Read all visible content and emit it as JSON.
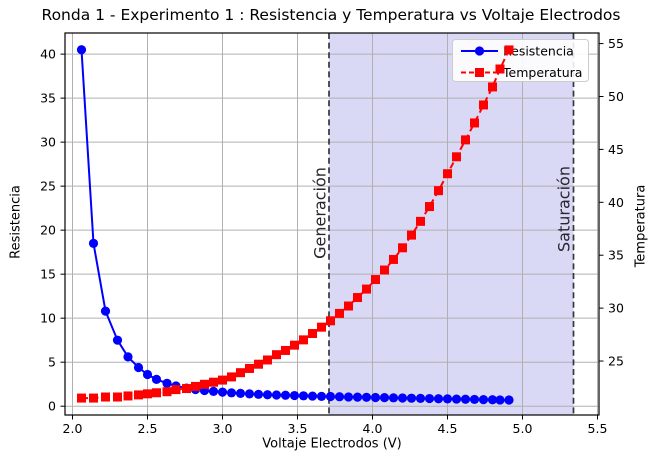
{
  "chart_data": {
    "type": "line",
    "title": "Ronda 1 - Experimento 1 : Resistencia y Temperatura vs Voltaje Electrodos",
    "xlabel": "Voltaje Electrodos (V)",
    "ylabel_left": "Resistencia",
    "ylabel_right": "Temperatura",
    "xlim": [
      1.95,
      5.51
    ],
    "ylim_left": [
      -1.0,
      42.4
    ],
    "ylim_right": [
      19.9,
      56.0
    ],
    "xticks": [
      2.0,
      2.5,
      3.0,
      3.5,
      4.0,
      4.5,
      5.0,
      5.5
    ],
    "yticks_left": [
      0,
      5,
      10,
      15,
      20,
      25,
      30,
      35,
      40
    ],
    "yticks_right": [
      25,
      30,
      35,
      40,
      45,
      50,
      55
    ],
    "grid": true,
    "grid_color": "#b0b0b0",
    "x": [
      2.06,
      2.14,
      2.22,
      2.3,
      2.37,
      2.44,
      2.5,
      2.56,
      2.63,
      2.69,
      2.76,
      2.82,
      2.88,
      2.94,
      3.0,
      3.06,
      3.12,
      3.18,
      3.24,
      3.3,
      3.36,
      3.42,
      3.48,
      3.54,
      3.6,
      3.66,
      3.72,
      3.78,
      3.84,
      3.9,
      3.96,
      4.02,
      4.08,
      4.14,
      4.2,
      4.26,
      4.32,
      4.38,
      4.44,
      4.5,
      4.56,
      4.62,
      4.68,
      4.74,
      4.8,
      4.85,
      4.91
    ],
    "series": [
      {
        "name": "Resistencia",
        "axis": "left",
        "color": "#0000ff",
        "marker": "circle",
        "linestyle": "solid",
        "values": [
          40.5,
          18.5,
          10.8,
          7.5,
          5.6,
          4.4,
          3.6,
          3.05,
          2.6,
          2.3,
          2.05,
          1.9,
          1.78,
          1.68,
          1.6,
          1.52,
          1.46,
          1.4,
          1.35,
          1.3,
          1.27,
          1.24,
          1.21,
          1.18,
          1.15,
          1.12,
          1.1,
          1.08,
          1.05,
          1.03,
          1.01,
          0.99,
          0.97,
          0.95,
          0.93,
          0.91,
          0.89,
          0.87,
          0.85,
          0.83,
          0.81,
          0.79,
          0.77,
          0.75,
          0.73,
          0.71,
          0.7
        ]
      },
      {
        "name": "Temperatura",
        "axis": "right",
        "color": "#ff0000",
        "marker": "square",
        "linestyle": "dashed",
        "values": [
          21.5,
          21.5,
          21.6,
          21.6,
          21.7,
          21.8,
          21.9,
          22.0,
          22.1,
          22.3,
          22.4,
          22.6,
          22.8,
          23.0,
          23.2,
          23.5,
          23.9,
          24.3,
          24.7,
          25.1,
          25.6,
          26.0,
          26.5,
          27.0,
          27.6,
          28.2,
          28.8,
          29.5,
          30.2,
          31.0,
          31.8,
          32.7,
          33.6,
          34.6,
          35.7,
          36.9,
          38.2,
          39.6,
          41.1,
          42.7,
          44.3,
          45.9,
          47.5,
          49.2,
          50.9,
          52.6,
          54.4
        ]
      }
    ],
    "legend": {
      "position": "upper right",
      "entries": [
        "Resistencia",
        "Temperatura"
      ]
    },
    "annotations": {
      "span": {
        "from": 3.71,
        "to": 5.34,
        "fill": "#d9d9f6"
      },
      "vlines": [
        {
          "x": 3.71,
          "label": "Generación"
        },
        {
          "x": 5.34,
          "label": "Saturación"
        }
      ],
      "vline_color": "#35353d"
    }
  }
}
